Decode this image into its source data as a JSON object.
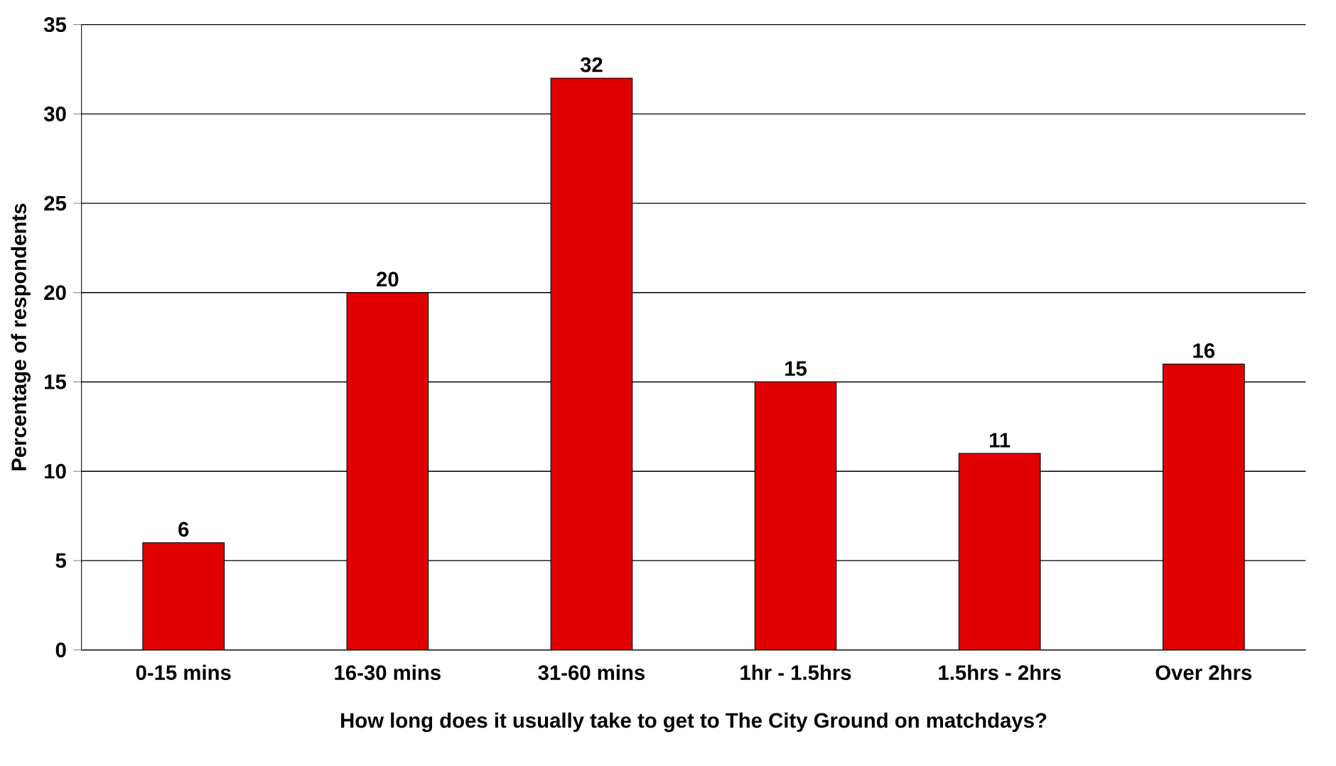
{
  "chart_data": {
    "type": "bar",
    "xlabel": "How long does it usually take to get to The City Ground on matchdays?",
    "ylabel": "Percentage of respondents",
    "categories": [
      "0-15 mins",
      "16-30 mins",
      "31-60 mins",
      "1hr - 1.5hrs",
      "1.5hrs - 2hrs",
      "Over 2hrs"
    ],
    "values": [
      6,
      20,
      32,
      15,
      11,
      16
    ],
    "color": "#e00000",
    "ylim": [
      0,
      35
    ],
    "yticks": [
      0,
      5,
      10,
      15,
      20,
      25,
      30,
      35
    ],
    "grid": "y",
    "data_labels": true
  }
}
